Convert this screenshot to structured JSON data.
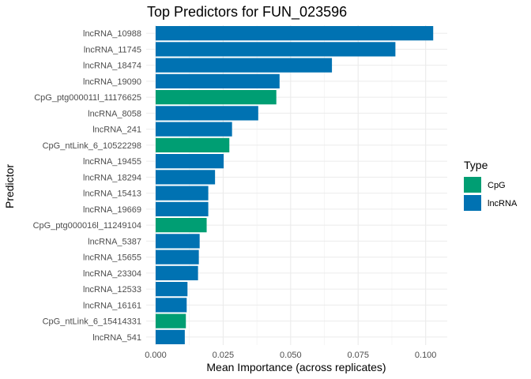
{
  "chart_data": {
    "type": "bar",
    "orientation": "horizontal",
    "title": "Top Predictors for FUN_023596",
    "xlabel": "Mean Importance (across replicates)",
    "ylabel": "Predictor",
    "xlim": [
      -0.0035,
      0.108
    ],
    "xticks": [
      0.0,
      0.025,
      0.05,
      0.075,
      0.1
    ],
    "xtick_labels": [
      "0.000",
      "0.025",
      "0.050",
      "0.075",
      "0.100"
    ],
    "grid": true,
    "legend": {
      "title": "Type",
      "position": "right",
      "entries": [
        {
          "label": "CpG",
          "color": "#009E73"
        },
        {
          "label": "lncRNA",
          "color": "#0072B2"
        }
      ]
    },
    "colors": {
      "CpG": "#009E73",
      "lncRNA": "#0072B2"
    },
    "bars": [
      {
        "category": "lncRNA_10988",
        "value": 0.1028,
        "type": "lncRNA"
      },
      {
        "category": "lncRNA_11745",
        "value": 0.0888,
        "type": "lncRNA"
      },
      {
        "category": "lncRNA_18474",
        "value": 0.0653,
        "type": "lncRNA"
      },
      {
        "category": "lncRNA_19090",
        "value": 0.0459,
        "type": "lncRNA"
      },
      {
        "category": "CpG_ptg000011l_11176625",
        "value": 0.0447,
        "type": "CpG"
      },
      {
        "category": "lncRNA_8058",
        "value": 0.038,
        "type": "lncRNA"
      },
      {
        "category": "lncRNA_241",
        "value": 0.0283,
        "type": "lncRNA"
      },
      {
        "category": "CpG_ntLink_6_10522298",
        "value": 0.0273,
        "type": "CpG"
      },
      {
        "category": "lncRNA_19455",
        "value": 0.0252,
        "type": "lncRNA"
      },
      {
        "category": "lncRNA_18294",
        "value": 0.022,
        "type": "lncRNA"
      },
      {
        "category": "lncRNA_15413",
        "value": 0.0195,
        "type": "lncRNA"
      },
      {
        "category": "lncRNA_19669",
        "value": 0.0195,
        "type": "lncRNA"
      },
      {
        "category": "CpG_ptg000016l_11249104",
        "value": 0.0189,
        "type": "CpG"
      },
      {
        "category": "lncRNA_5387",
        "value": 0.0163,
        "type": "lncRNA"
      },
      {
        "category": "lncRNA_15655",
        "value": 0.016,
        "type": "lncRNA"
      },
      {
        "category": "lncRNA_23304",
        "value": 0.0157,
        "type": "lncRNA"
      },
      {
        "category": "lncRNA_12533",
        "value": 0.0118,
        "type": "lncRNA"
      },
      {
        "category": "lncRNA_16161",
        "value": 0.0115,
        "type": "lncRNA"
      },
      {
        "category": "CpG_ntLink_6_15414331",
        "value": 0.0112,
        "type": "CpG"
      },
      {
        "category": "lncRNA_541",
        "value": 0.0108,
        "type": "lncRNA"
      }
    ]
  }
}
